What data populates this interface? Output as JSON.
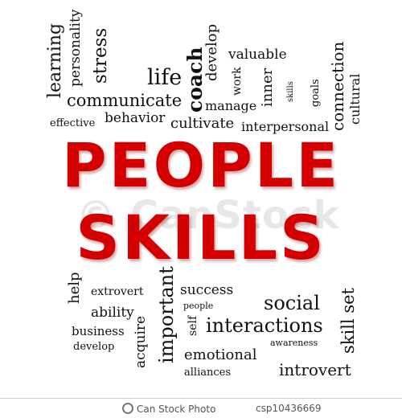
{
  "heading": {
    "line1": "PEOPLE",
    "line2": "SKILLS"
  },
  "watermark": "© CanStock",
  "footer": {
    "brand": "Can Stock Photo",
    "id": "csp10436669"
  },
  "words": {
    "learning": "learning",
    "personality": "personality",
    "stress": "stress",
    "life": "life",
    "coach": "coach",
    "develop_top": "develop",
    "valuable": "valuable",
    "work": "work",
    "inner": "inner",
    "skills": "skills",
    "goals": "goals",
    "connection": "connection",
    "cultural": "cultural",
    "communicate": "communicate",
    "manage": "manage",
    "effective": "effective",
    "behavior": "behavior",
    "cultivate": "cultivate",
    "interpersonal": "interpersonal",
    "help": "help",
    "extrovert": "extrovert",
    "important": "important",
    "success": "success",
    "people": "people",
    "social": "social",
    "skill_set": "skill set",
    "ability": "ability",
    "business": "business",
    "acquire": "acquire",
    "self": "self",
    "interactions": "interactions",
    "develop_bottom": "develop",
    "emotional": "emotional",
    "awareness": "awareness",
    "alliances": "alliances",
    "introvert": "introvert"
  }
}
